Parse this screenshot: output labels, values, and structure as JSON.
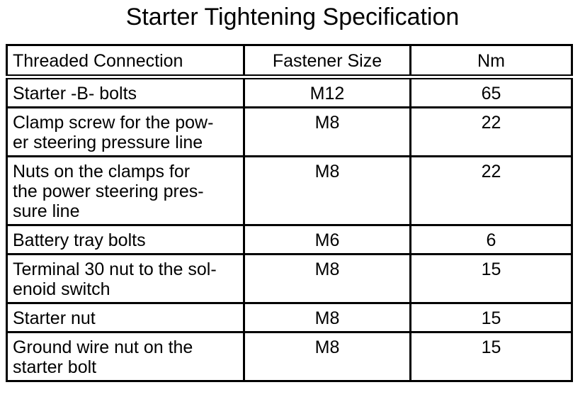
{
  "title": "Starter Tightening Specification",
  "headers": [
    "Threaded Connection",
    "Fastener Size",
    "Nm"
  ],
  "rows": [
    {
      "connection": "Starter -B- bolts",
      "size": "M12",
      "nm": "65"
    },
    {
      "connection": "Clamp screw for the pow-\ner steering pressure line",
      "size": "M8",
      "nm": "22"
    },
    {
      "connection": "Nuts on the clamps for\nthe power steering pres-\nsure line",
      "size": "M8",
      "nm": "22"
    },
    {
      "connection": "Battery tray bolts",
      "size": "M6",
      "nm": "6"
    },
    {
      "connection": "Terminal 30 nut to the sol-\nenoid switch",
      "size": "M8",
      "nm": "15"
    },
    {
      "connection": "Starter nut",
      "size": "M8",
      "nm": "15"
    },
    {
      "connection": "Ground wire nut on the\nstarter bolt",
      "size": "M8",
      "nm": "15"
    }
  ]
}
